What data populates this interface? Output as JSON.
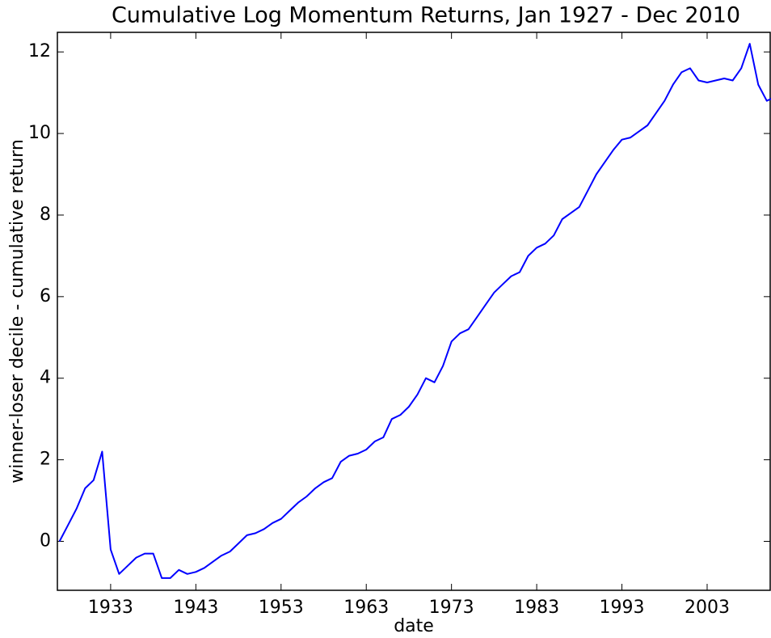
{
  "chart_data": {
    "type": "line",
    "title": "Cumulative Log Momentum Returns, Jan 1927 - Dec 2010",
    "x_label": "date",
    "y_label": "winner-loser decile - cumulative return",
    "x": [
      1927,
      1928,
      1929,
      1930,
      1931,
      1932,
      1933,
      1934,
      1935,
      1936,
      1937,
      1938,
      1939,
      1940,
      1941,
      1942,
      1943,
      1944,
      1945,
      1946,
      1947,
      1948,
      1949,
      1950,
      1951,
      1952,
      1953,
      1954,
      1955,
      1956,
      1957,
      1958,
      1959,
      1960,
      1961,
      1962,
      1963,
      1964,
      1965,
      1966,
      1967,
      1968,
      1969,
      1970,
      1971,
      1972,
      1973,
      1974,
      1975,
      1976,
      1977,
      1978,
      1979,
      1980,
      1981,
      1982,
      1983,
      1984,
      1985,
      1986,
      1987,
      1988,
      1989,
      1990,
      1991,
      1992,
      1993,
      1994,
      1995,
      1996,
      1997,
      1998,
      1999,
      2000,
      2001,
      2002,
      2003,
      2004,
      2005,
      2006,
      2007,
      2008,
      2009,
      2010,
      2011
    ],
    "series": [
      {
        "name": "winner-loser decile",
        "color": "#0000ff",
        "values": [
          0.0,
          0.4,
          0.8,
          1.3,
          1.5,
          2.2,
          -0.2,
          -0.8,
          -0.6,
          -0.4,
          -0.3,
          -0.3,
          -0.9,
          -0.9,
          -0.7,
          -0.8,
          -0.75,
          -0.65,
          -0.5,
          -0.35,
          -0.25,
          -0.05,
          0.15,
          0.2,
          0.3,
          0.45,
          0.55,
          0.75,
          0.95,
          1.1,
          1.3,
          1.45,
          1.55,
          1.95,
          2.1,
          2.15,
          2.25,
          2.45,
          2.55,
          3.0,
          3.1,
          3.3,
          3.6,
          4.0,
          3.9,
          4.3,
          4.9,
          5.1,
          5.2,
          5.5,
          5.8,
          6.1,
          6.3,
          6.5,
          6.6,
          7.0,
          7.2,
          7.3,
          7.5,
          7.9,
          8.05,
          8.2,
          8.6,
          9.0,
          9.3,
          9.6,
          9.85,
          9.9,
          10.05,
          10.2,
          10.5,
          10.8,
          11.2,
          11.5,
          11.6,
          11.3,
          11.25,
          11.3,
          11.35,
          11.3,
          11.6,
          12.2,
          11.2,
          10.8,
          10.9
        ]
      }
    ],
    "xlim": [
      1926.75,
      2010.4
    ],
    "xticks": [
      1933,
      1943,
      1953,
      1963,
      1973,
      1983,
      1993,
      2003
    ],
    "ylim": [
      -1.2,
      12.48
    ],
    "yticks": [
      0,
      2,
      4,
      6,
      8,
      10,
      12
    ],
    "grid": false
  }
}
